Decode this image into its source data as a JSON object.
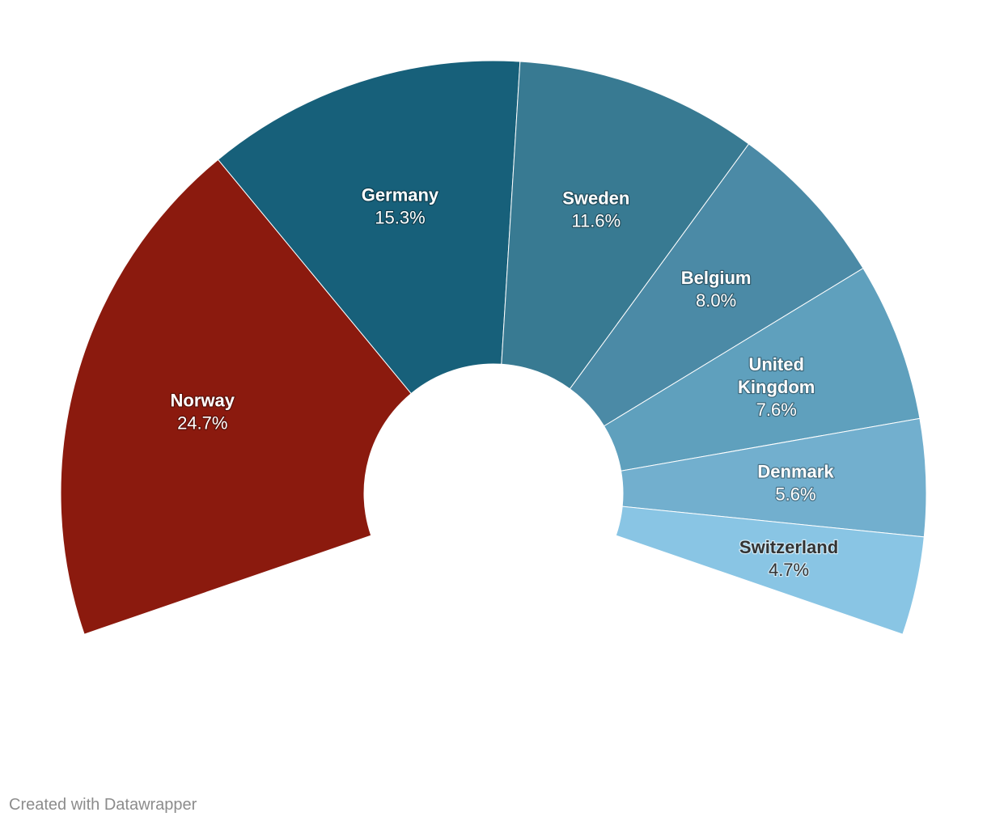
{
  "chart_data": {
    "type": "pie",
    "style": "partial donut (semicircle-like arc)",
    "slices": [
      {
        "label": "Norway",
        "value": 24.7,
        "value_label": "24.7%",
        "color": "#8b1a0e",
        "label_style": "light"
      },
      {
        "label": "Germany",
        "value": 15.3,
        "value_label": "15.3%",
        "color": "#17607a",
        "label_style": "light"
      },
      {
        "label": "Sweden",
        "value": 11.6,
        "value_label": "11.6%",
        "color": "#387a92",
        "label_style": "light"
      },
      {
        "label": "Belgium",
        "value": 8.0,
        "value_label": "8.0%",
        "color": "#4b8aa6",
        "label_style": "light"
      },
      {
        "label": "United Kingdom",
        "label_lines": [
          "United",
          "Kingdom"
        ],
        "value": 7.6,
        "value_label": "7.6%",
        "color": "#5fa0bd",
        "label_style": "light"
      },
      {
        "label": "Denmark",
        "value": 5.6,
        "value_label": "5.6%",
        "color": "#72afce",
        "label_style": "light"
      },
      {
        "label": "Switzerland",
        "value": 4.7,
        "value_label": "4.7%",
        "color": "#89c5e4",
        "label_style": "dark"
      }
    ]
  },
  "footer": {
    "credit": "Created with Datawrapper"
  }
}
